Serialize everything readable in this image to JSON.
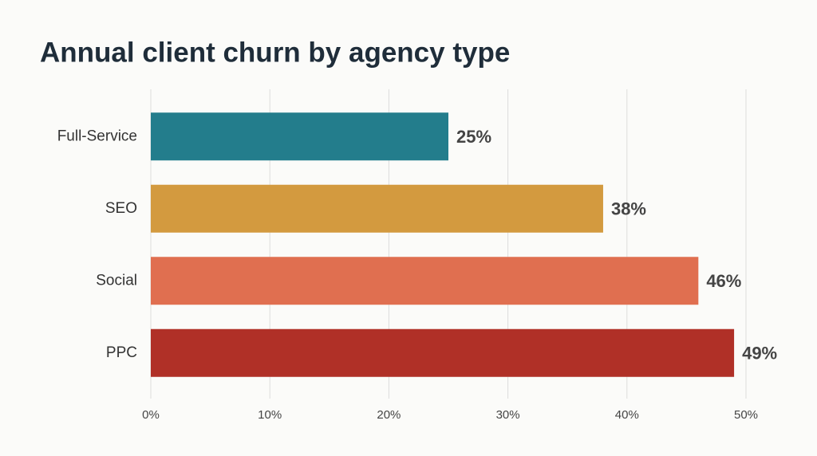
{
  "chart_data": {
    "type": "bar",
    "orientation": "horizontal",
    "title": "Annual client churn by agency type",
    "categories": [
      "Full-Service",
      "SEO",
      "Social",
      "PPC"
    ],
    "values": [
      25,
      38,
      46,
      49
    ],
    "value_labels": [
      "25%",
      "38%",
      "46%",
      "49%"
    ],
    "colors": [
      "#237d8c",
      "#d39a3f",
      "#e06f50",
      "#b03027"
    ],
    "xlim": [
      0,
      50
    ],
    "xticks": [
      {
        "value": 0,
        "label": "0%"
      },
      {
        "value": 10,
        "label": "10%"
      },
      {
        "value": 20,
        "label": "20%"
      },
      {
        "value": 30,
        "label": "30%"
      },
      {
        "value": 40,
        "label": "40%"
      },
      {
        "value": 50,
        "label": "50%"
      }
    ],
    "grid": true
  }
}
